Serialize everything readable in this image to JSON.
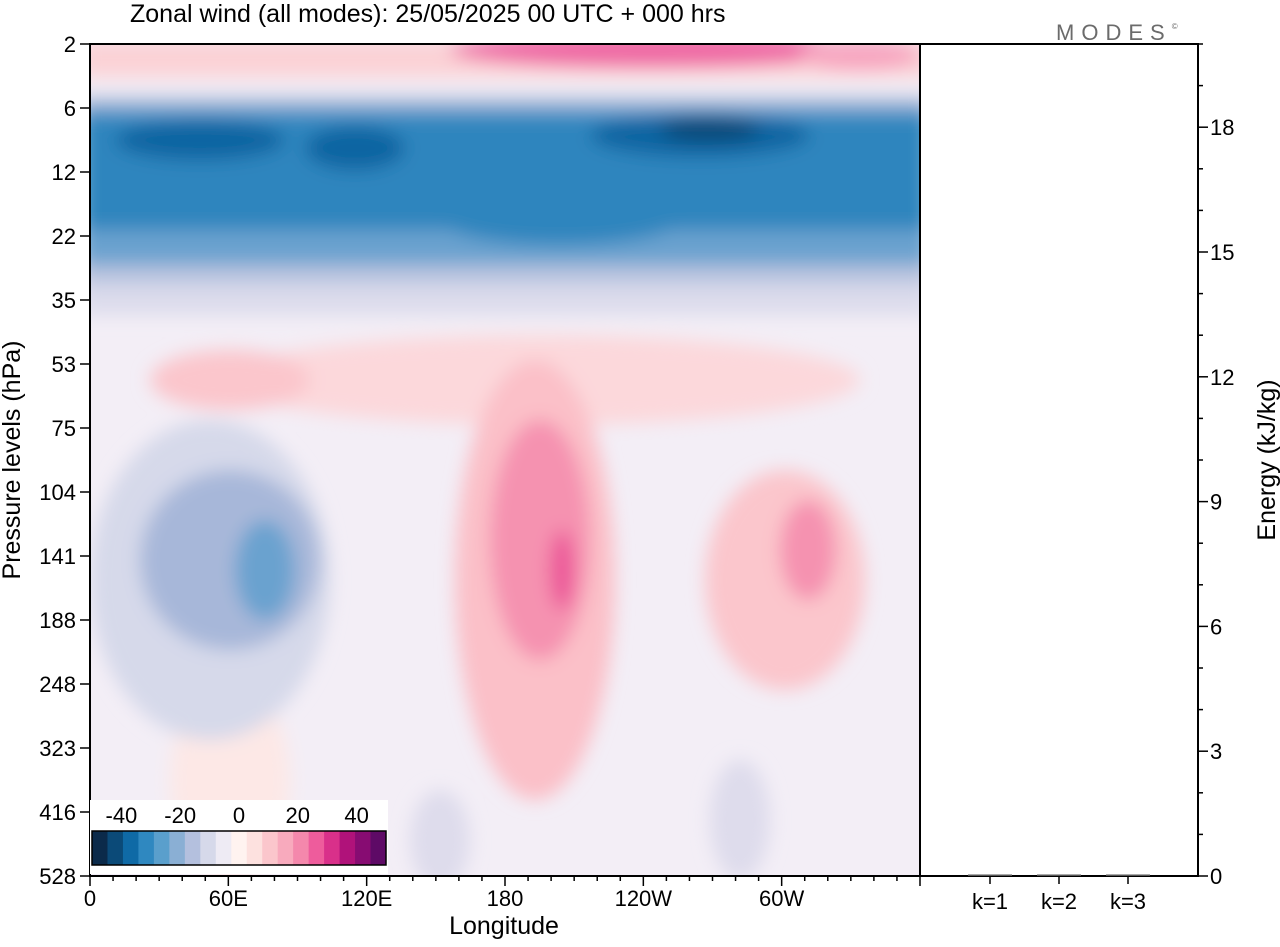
{
  "chart_data": {
    "type": "heatmap",
    "title": "Zonal wind (all modes):  25/05/2025  00 UTC  + 000 hrs",
    "xlabel": "Longitude",
    "ylabel": "Pressure levels (hPa)",
    "x_ticks": [
      "0",
      "60E",
      "120E",
      "180",
      "120W",
      "60W"
    ],
    "x_tick_values": [
      0,
      60,
      120,
      180,
      240,
      300
    ],
    "xlim": [
      0,
      360
    ],
    "y_ticks": [
      "2",
      "6",
      "12",
      "22",
      "35",
      "53",
      "75",
      "104",
      "141",
      "188",
      "248",
      "323",
      "416",
      "528"
    ],
    "y_scale": "ordinal pressure levels, 2 hPa at top",
    "colorbar": {
      "ticks": [
        "-40",
        "-20",
        "0",
        "20",
        "40"
      ],
      "range": [
        -50,
        50
      ],
      "colors": [
        "#0b2a4a",
        "#0b4a78",
        "#0f6aa6",
        "#2f88c0",
        "#5a9fcc",
        "#8aafd4",
        "#b4c0de",
        "#d6d9ea",
        "#eeebf4",
        "#fff3f0",
        "#fde1df",
        "#fbc6cc",
        "#f8aabd",
        "#f488ac",
        "#ee5c9c",
        "#d9308a",
        "#b0127a",
        "#870c72",
        "#5e0a66"
      ]
    },
    "field_description": "contour-filled zonal wind; negative (blue) band at 6-35 hPa, positive (pink) patches near 180 and 60W at 75-248 hPa, negative patch near 60E at 104-248 hPa",
    "energy_panel": {
      "ylabel": "Energy (kJ/kg)",
      "y_ticks": [
        "0",
        "3",
        "6",
        "9",
        "12",
        "15",
        "18"
      ],
      "ylim": [
        0,
        20
      ],
      "categories": [
        "k=1",
        "k=2",
        "k=3"
      ],
      "values": [
        0.0,
        0.0,
        0.0
      ]
    }
  },
  "logo": {
    "text": "MODES",
    "mark": "©"
  }
}
